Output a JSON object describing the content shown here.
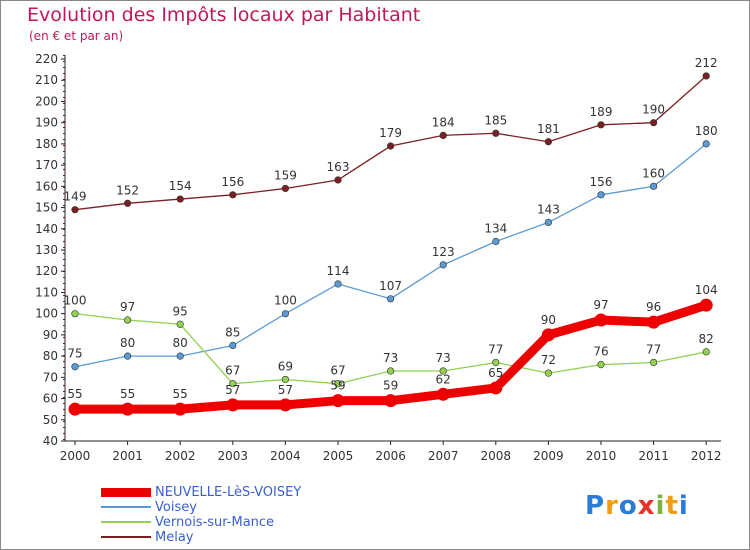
{
  "header": {
    "title": "Evolution des Impôts locaux par Habitant",
    "subtitle": "(en € et par an)"
  },
  "logo": {
    "text": "Proxiti"
  },
  "chart_data": {
    "type": "line",
    "title": "Evolution des Impôts locaux par Habitant",
    "subtitle": "(en € et par an)",
    "xlabel": "",
    "ylabel": "",
    "x": [
      2000,
      2001,
      2002,
      2003,
      2004,
      2005,
      2006,
      2007,
      2008,
      2009,
      2010,
      2011,
      2012
    ],
    "ylim": [
      40,
      220
    ],
    "yticks": [
      40,
      50,
      60,
      70,
      80,
      90,
      100,
      110,
      120,
      130,
      140,
      150,
      160,
      170,
      180,
      190,
      200,
      210,
      220
    ],
    "grid": false,
    "legend_position": "bottom-left",
    "series": [
      {
        "name": "NEUVELLE-LèS-VOISEY",
        "color": "#ee0000",
        "emphasis": true,
        "values": [
          55,
          55,
          55,
          57,
          57,
          59,
          59,
          62,
          65,
          90,
          97,
          96,
          104
        ]
      },
      {
        "name": "Voisey",
        "color": "#5b9bd5",
        "emphasis": false,
        "values": [
          75,
          80,
          80,
          85,
          100,
          114,
          107,
          123,
          134,
          143,
          156,
          160,
          180
        ]
      },
      {
        "name": "Vernois-sur-Mance",
        "color": "#92d050",
        "emphasis": false,
        "values": [
          100,
          97,
          95,
          67,
          69,
          67,
          73,
          73,
          77,
          72,
          76,
          77,
          82
        ]
      },
      {
        "name": "Melay",
        "color": "#7b2020",
        "emphasis": false,
        "values": [
          149,
          152,
          154,
          156,
          159,
          163,
          179,
          184,
          185,
          181,
          189,
          190,
          212
        ]
      }
    ]
  }
}
